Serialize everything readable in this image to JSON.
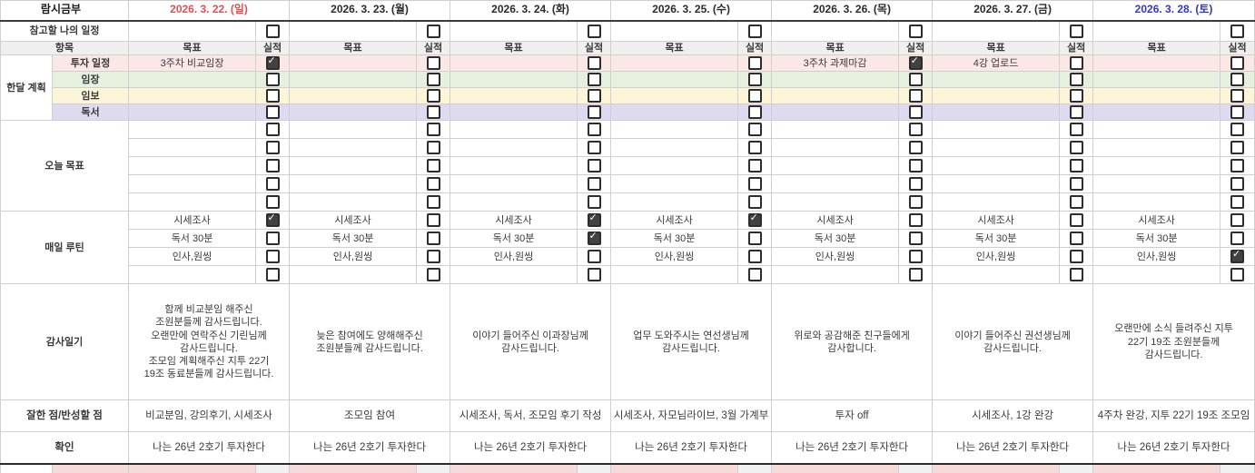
{
  "sheet": {
    "title": "람시금부",
    "columns": {
      "goal": "목표",
      "actual": "실적"
    },
    "header": {
      "ref_label": "참고할 나의 일정",
      "item_label": "항목",
      "dates": [
        {
          "label": "2026. 3. 22. (일)",
          "color": "#df5050"
        },
        {
          "label": "2026. 3. 23. (월)",
          "color": "#2b2b2b"
        },
        {
          "label": "2026. 3. 24. (화)",
          "color": "#2b2b2b"
        },
        {
          "label": "2026. 3. 25. (수)",
          "color": "#2b2b2b"
        },
        {
          "label": "2026. 3. 26. (목)",
          "color": "#2b2b2b"
        },
        {
          "label": "2026. 3. 27. (금)",
          "color": "#2b2b2b"
        },
        {
          "label": "2026. 3. 28. (토)",
          "color": "#3636cb"
        }
      ],
      "ref_checks": [
        false,
        false,
        false,
        false,
        false,
        false,
        false
      ]
    },
    "sections": {
      "monthly_plan": {
        "label": "한달 계획",
        "rows": [
          {
            "label": "투자 일정",
            "bg": "#fbe7e6",
            "cells": [
              {
                "text": "3주차 비교임장",
                "checked": true
              },
              {
                "text": "",
                "checked": false
              },
              {
                "text": "",
                "checked": false
              },
              {
                "text": "",
                "checked": false
              },
              {
                "text": "3주차 과제마감",
                "checked": true
              },
              {
                "text": "4강 업로드",
                "checked": false
              },
              {
                "text": "",
                "checked": false
              }
            ]
          },
          {
            "label": "임장",
            "bg": "#e6f0de",
            "cells": [
              {
                "text": "",
                "checked": false
              },
              {
                "text": "",
                "checked": false
              },
              {
                "text": "",
                "checked": false
              },
              {
                "text": "",
                "checked": false
              },
              {
                "text": "",
                "checked": false
              },
              {
                "text": "",
                "checked": false
              },
              {
                "text": "",
                "checked": false
              }
            ]
          },
          {
            "label": "임보",
            "bg": "#fdf5d7",
            "cells": [
              {
                "text": "",
                "checked": false
              },
              {
                "text": "",
                "checked": false
              },
              {
                "text": "",
                "checked": false
              },
              {
                "text": "",
                "checked": false
              },
              {
                "text": "",
                "checked": false
              },
              {
                "text": "",
                "checked": false
              },
              {
                "text": "",
                "checked": false
              }
            ]
          },
          {
            "label": "독서",
            "bg": "#dedaef",
            "cells": [
              {
                "text": "",
                "checked": false
              },
              {
                "text": "",
                "checked": false
              },
              {
                "text": "",
                "checked": false
              },
              {
                "text": "",
                "checked": false
              },
              {
                "text": "",
                "checked": false
              },
              {
                "text": "",
                "checked": false
              },
              {
                "text": "",
                "checked": false
              }
            ]
          }
        ]
      },
      "today_goals": {
        "label": "오늘 목표",
        "rows": [
          {
            "cells": [
              {
                "text": "",
                "checked": false
              },
              {
                "text": "",
                "checked": false
              },
              {
                "text": "",
                "checked": false
              },
              {
                "text": "",
                "checked": false
              },
              {
                "text": "",
                "checked": false
              },
              {
                "text": "",
                "checked": false
              },
              {
                "text": "",
                "checked": false
              }
            ]
          },
          {
            "cells": [
              {
                "text": "",
                "checked": false
              },
              {
                "text": "",
                "checked": false
              },
              {
                "text": "",
                "checked": false
              },
              {
                "text": "",
                "checked": false
              },
              {
                "text": "",
                "checked": false
              },
              {
                "text": "",
                "checked": false
              },
              {
                "text": "",
                "checked": false
              }
            ]
          },
          {
            "cells": [
              {
                "text": "",
                "checked": false
              },
              {
                "text": "",
                "checked": false
              },
              {
                "text": "",
                "checked": false
              },
              {
                "text": "",
                "checked": false
              },
              {
                "text": "",
                "checked": false
              },
              {
                "text": "",
                "checked": false
              },
              {
                "text": "",
                "checked": false
              }
            ]
          },
          {
            "cells": [
              {
                "text": "",
                "checked": false
              },
              {
                "text": "",
                "checked": false
              },
              {
                "text": "",
                "checked": false
              },
              {
                "text": "",
                "checked": false
              },
              {
                "text": "",
                "checked": false
              },
              {
                "text": "",
                "checked": false
              },
              {
                "text": "",
                "checked": false
              }
            ]
          },
          {
            "cells": [
              {
                "text": "",
                "checked": false
              },
              {
                "text": "",
                "checked": false
              },
              {
                "text": "",
                "checked": false
              },
              {
                "text": "",
                "checked": false
              },
              {
                "text": "",
                "checked": false
              },
              {
                "text": "",
                "checked": false
              },
              {
                "text": "",
                "checked": false
              }
            ]
          }
        ]
      },
      "daily_routine": {
        "label": "매일 루틴",
        "rows": [
          {
            "cells": [
              {
                "text": "시세조사",
                "checked": true
              },
              {
                "text": "시세조사",
                "checked": false
              },
              {
                "text": "시세조사",
                "checked": true
              },
              {
                "text": "시세조사",
                "checked": true
              },
              {
                "text": "시세조사",
                "checked": false
              },
              {
                "text": "시세조사",
                "checked": false
              },
              {
                "text": "시세조사",
                "checked": false
              }
            ]
          },
          {
            "cells": [
              {
                "text": "독서 30분",
                "checked": false
              },
              {
                "text": "독서 30분",
                "checked": false
              },
              {
                "text": "독서 30분",
                "checked": true
              },
              {
                "text": "독서 30분",
                "checked": false
              },
              {
                "text": "독서 30분",
                "checked": false
              },
              {
                "text": "독서 30분",
                "checked": false
              },
              {
                "text": "독서 30분",
                "checked": false
              }
            ]
          },
          {
            "cells": [
              {
                "text": "인사,원씽",
                "checked": false
              },
              {
                "text": "인사,원씽",
                "checked": false
              },
              {
                "text": "인사,원씽",
                "checked": false
              },
              {
                "text": "인사,원씽",
                "checked": false
              },
              {
                "text": "인사,원씽",
                "checked": false
              },
              {
                "text": "인사,원씽",
                "checked": false
              },
              {
                "text": "인사,원씽",
                "checked": true
              }
            ]
          },
          {
            "cells": [
              {
                "text": "",
                "checked": false
              },
              {
                "text": "",
                "checked": false
              },
              {
                "text": "",
                "checked": false
              },
              {
                "text": "",
                "checked": false
              },
              {
                "text": "",
                "checked": false
              },
              {
                "text": "",
                "checked": false
              },
              {
                "text": "",
                "checked": false
              }
            ]
          }
        ]
      },
      "gratitude": {
        "label": "감사일기",
        "entries": [
          "함께 비교분임 해주신\n조원분들께 감사드립니다.\n오랜만에 연락주신 기린님께\n감사드립니다.\n조모임 계획해주신 지투 22기\n19조 동료분들께 감사드립니다.",
          "늦은 참여에도 양해해주신\n조원분들께 감사드립니다.",
          "이야기 들어주신 이과장님께\n감사드립니다.",
          "업무 도와주시는 연선생님께\n감사드립니다.",
          "위로와 공감해준 친구들에게\n감사합니다.",
          "이야기 들어주신 권선생님께\n감사드립니다.",
          "오랜만에 소식 들려주신 지투\n22기 19조 조원분들께\n감사드립니다."
        ]
      },
      "review": {
        "label": "잘한 점/반성할 점",
        "entries": [
          "비교분임, 강의후기, 시세조사",
          "조모임 참여",
          "시세조사, 독서, 조모임 후기 작성",
          "시세조사, 자모님라이브, 3월 가계부",
          "투자 off",
          "시세조사, 1강 완강",
          "4주차 완강, 지투 22기 19조 조모임"
        ]
      },
      "affirmation": {
        "label": "확인",
        "entries": [
          "나는 26년 2호기 투자한다",
          "나는 26년 2호기 투자한다",
          "나는 26년 2호기 투자한다",
          "나는 26년 2호기 투자한다",
          "나는 26년 2호기 투자한다",
          "나는 26년 2호기 투자한다",
          "나는 26년 2호기 투자한다"
        ]
      }
    },
    "colors": {
      "next_week_goal": "#f7dbdb",
      "next_week_actual": "#f1f1f1",
      "next_week_sublabel": "#f7dbdb"
    }
  }
}
